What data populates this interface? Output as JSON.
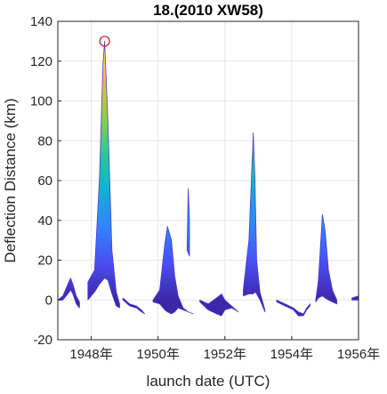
{
  "chart_data": {
    "type": "area",
    "title": "18.(2010 XW58)",
    "xlabel": "launch date (UTC)",
    "ylabel": "Deflection Distance (km)",
    "xlim": [
      1947.0,
      1956.0
    ],
    "ylim": [
      -20,
      140
    ],
    "x_ticks": [
      1948,
      1950,
      1952,
      1954,
      1956
    ],
    "x_tick_labels": [
      "1948年",
      "1950年",
      "1952年",
      "1954年",
      "1956年"
    ],
    "y_ticks": [
      -20,
      0,
      20,
      40,
      60,
      80,
      100,
      120,
      140
    ],
    "y_tick_labels": [
      "-20",
      "0",
      "20",
      "40",
      "60",
      "80",
      "100",
      "120",
      "140"
    ],
    "grid": true,
    "colormap": [
      "#3E26A8",
      "#4A4EF2",
      "#2F86F9",
      "#12B1D1",
      "#2ACB90",
      "#94CD48",
      "#F5BA3C",
      "#F9FB14"
    ],
    "marker": {
      "x": 1948.4,
      "y": 130,
      "color": "#D62728",
      "shape": "circle"
    },
    "segments": [
      {
        "upper": [
          [
            1947.0,
            0
          ],
          [
            1947.15,
            2
          ],
          [
            1947.3,
            8
          ],
          [
            1947.38,
            11
          ],
          [
            1947.45,
            8
          ],
          [
            1947.55,
            2
          ],
          [
            1947.65,
            -1
          ]
        ],
        "lower": [
          [
            1947.0,
            0
          ],
          [
            1947.15,
            0
          ],
          [
            1947.3,
            3
          ],
          [
            1947.38,
            5
          ],
          [
            1947.45,
            3
          ],
          [
            1947.55,
            -2
          ],
          [
            1947.65,
            -4
          ]
        ]
      },
      {
        "upper": [
          [
            1947.9,
            9
          ],
          [
            1948.1,
            15
          ],
          [
            1948.25,
            62
          ],
          [
            1948.35,
            118
          ],
          [
            1948.4,
            130
          ],
          [
            1948.5,
            90
          ],
          [
            1948.62,
            25
          ],
          [
            1948.75,
            4
          ],
          [
            1948.85,
            -2
          ]
        ],
        "lower": [
          [
            1947.9,
            0
          ],
          [
            1948.1,
            4
          ],
          [
            1948.25,
            8
          ],
          [
            1948.35,
            10
          ],
          [
            1948.4,
            11
          ],
          [
            1948.5,
            10
          ],
          [
            1948.62,
            3
          ],
          [
            1948.75,
            -3
          ],
          [
            1948.85,
            -4
          ]
        ]
      },
      {
        "upper": [
          [
            1948.95,
            1
          ],
          [
            1949.15,
            -2
          ],
          [
            1949.35,
            -3
          ],
          [
            1949.5,
            -5
          ],
          [
            1949.6,
            -7
          ]
        ],
        "lower": [
          [
            1948.95,
            0
          ],
          [
            1949.15,
            -3
          ],
          [
            1949.35,
            -4
          ],
          [
            1949.5,
            -6
          ],
          [
            1949.6,
            -7
          ]
        ]
      },
      {
        "upper": [
          [
            1949.85,
            0
          ],
          [
            1950.05,
            5
          ],
          [
            1950.2,
            28
          ],
          [
            1950.28,
            37
          ],
          [
            1950.4,
            30
          ],
          [
            1950.5,
            12
          ],
          [
            1950.6,
            2
          ],
          [
            1950.75,
            -4
          ],
          [
            1950.9,
            -6
          ],
          [
            1951.05,
            -7
          ]
        ],
        "lower": [
          [
            1949.85,
            -1
          ],
          [
            1950.05,
            -2
          ],
          [
            1950.2,
            -5
          ],
          [
            1950.28,
            -6
          ],
          [
            1950.4,
            -7
          ],
          [
            1950.5,
            -6
          ],
          [
            1950.6,
            -4
          ],
          [
            1950.75,
            -5
          ],
          [
            1950.9,
            -6
          ],
          [
            1951.05,
            -7
          ]
        ]
      },
      {
        "upper": [
          [
            1950.87,
            25
          ],
          [
            1950.9,
            56
          ],
          [
            1950.94,
            40
          ],
          [
            1950.94,
            22
          ]
        ],
        "lower": [
          [
            1950.87,
            25
          ],
          [
            1950.94,
            22
          ]
        ]
      },
      {
        "upper": [
          [
            1951.25,
            0
          ],
          [
            1951.5,
            -2
          ],
          [
            1951.75,
            1
          ],
          [
            1951.9,
            3
          ],
          [
            1952.0,
            0
          ],
          [
            1952.2,
            -3
          ],
          [
            1952.4,
            -6
          ]
        ],
        "lower": [
          [
            1951.25,
            -1
          ],
          [
            1951.5,
            -5
          ],
          [
            1951.75,
            -7
          ],
          [
            1951.9,
            -8
          ],
          [
            1952.0,
            -5
          ],
          [
            1952.2,
            -4
          ],
          [
            1952.4,
            -6
          ]
        ]
      },
      {
        "upper": [
          [
            1952.55,
            5
          ],
          [
            1952.72,
            30
          ],
          [
            1952.85,
            84
          ],
          [
            1952.9,
            60
          ],
          [
            1952.95,
            20
          ],
          [
            1953.05,
            4
          ],
          [
            1953.2,
            -5
          ]
        ],
        "lower": [
          [
            1952.55,
            2
          ],
          [
            1952.72,
            3
          ],
          [
            1952.85,
            3
          ],
          [
            1952.9,
            4
          ],
          [
            1952.95,
            3
          ],
          [
            1953.05,
            0
          ],
          [
            1953.2,
            -6
          ]
        ]
      },
      {
        "upper": [
          [
            1953.55,
            0
          ],
          [
            1953.8,
            -2
          ],
          [
            1954.05,
            -4
          ],
          [
            1954.2,
            -6
          ],
          [
            1954.35,
            -7
          ],
          [
            1954.45,
            -4
          ],
          [
            1954.55,
            -2
          ]
        ],
        "lower": [
          [
            1953.55,
            -1
          ],
          [
            1953.8,
            -3
          ],
          [
            1954.05,
            -5
          ],
          [
            1954.2,
            -8
          ],
          [
            1954.35,
            -8
          ],
          [
            1954.45,
            -5
          ],
          [
            1954.55,
            -3
          ]
        ]
      },
      {
        "upper": [
          [
            1954.72,
            0
          ],
          [
            1954.8,
            10
          ],
          [
            1954.92,
            43
          ],
          [
            1955.0,
            35
          ],
          [
            1955.1,
            15
          ],
          [
            1955.22,
            5
          ],
          [
            1955.35,
            0
          ]
        ],
        "lower": [
          [
            1954.72,
            -1
          ],
          [
            1954.8,
            1
          ],
          [
            1954.92,
            2
          ],
          [
            1955.0,
            1
          ],
          [
            1955.1,
            0
          ],
          [
            1955.22,
            -1
          ],
          [
            1955.35,
            -2
          ]
        ]
      },
      {
        "upper": [
          [
            1955.8,
            1
          ],
          [
            1956.0,
            2
          ]
        ],
        "lower": [
          [
            1955.8,
            0
          ],
          [
            1956.0,
            0
          ]
        ]
      }
    ]
  }
}
